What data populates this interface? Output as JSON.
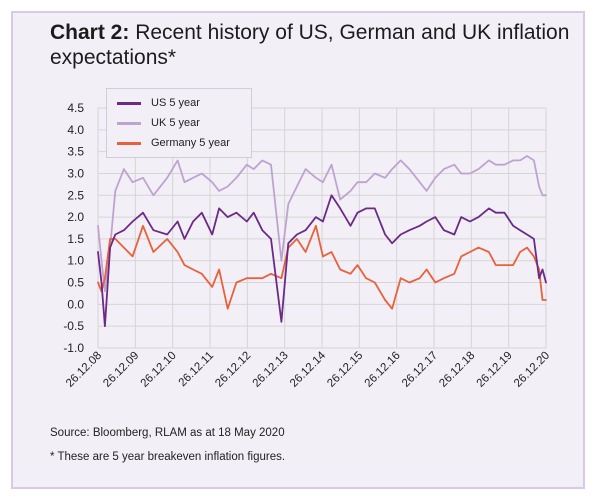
{
  "title": {
    "prefix": "Chart 2:",
    "text": "Recent history of US, German and UK inflation expectations*"
  },
  "source": "Source: Bloomberg, RLAM as at 18 May 2020",
  "footnote": "* These are 5 year breakeven inflation figures.",
  "colors": {
    "us": "#6b2a85",
    "uk": "#bea3cf",
    "germany": "#e8613c",
    "panel_bg": "#f3eff7",
    "panel_border": "#d9c8e6",
    "grid": "#d5d5d5"
  },
  "chart_data": {
    "type": "line",
    "title": "Recent history of US, German and UK inflation expectations*",
    "xlabel": "",
    "ylabel": "",
    "ylim": [
      -1.0,
      4.5
    ],
    "yticks": [
      "4.5",
      "4.0",
      "3.5",
      "3.0",
      "2.5",
      "2.0",
      "1.5",
      "1.0",
      "0.5",
      "0.0",
      "-0.5",
      "-1.0"
    ],
    "xticks": [
      "26.12.08",
      "26.12.09",
      "26.12.10",
      "26.12.11",
      "26.12.12",
      "26.12.13",
      "26.12.14",
      "26.12.15",
      "26.12.16",
      "26.12.17",
      "26.12.18",
      "26.12.19",
      "26.12.20"
    ],
    "xrange": [
      2008.0,
      2020.95
    ],
    "grid": true,
    "legend_position": "top-left",
    "series": [
      {
        "name": "US 5 year",
        "key": "us",
        "x": [
          2008.0,
          2008.1,
          2008.2,
          2008.35,
          2008.5,
          2008.75,
          2009.0,
          2009.3,
          2009.6,
          2010.0,
          2010.3,
          2010.5,
          2010.75,
          2011.0,
          2011.3,
          2011.5,
          2011.75,
          2012.0,
          2012.3,
          2012.5,
          2012.75,
          2013.0,
          2013.3,
          2013.5,
          2013.75,
          2014.0,
          2014.3,
          2014.5,
          2014.75,
          2015.0,
          2015.3,
          2015.5,
          2015.75,
          2016.0,
          2016.3,
          2016.5,
          2016.75,
          2017.0,
          2017.3,
          2017.5,
          2017.75,
          2018.0,
          2018.3,
          2018.5,
          2018.75,
          2019.0,
          2019.3,
          2019.5,
          2019.75,
          2020.0,
          2020.2,
          2020.4,
          2020.6,
          2020.75,
          2020.85,
          2020.95
        ],
        "values": [
          1.2,
          0.5,
          -0.5,
          1.3,
          1.6,
          1.7,
          1.9,
          2.1,
          1.7,
          1.6,
          1.9,
          1.5,
          1.9,
          2.1,
          1.6,
          2.2,
          2.0,
          2.1,
          1.9,
          2.1,
          1.7,
          1.5,
          -0.4,
          1.4,
          1.6,
          1.7,
          2.0,
          1.9,
          2.5,
          2.2,
          1.8,
          2.1,
          2.2,
          2.2,
          1.6,
          1.4,
          1.6,
          1.7,
          1.8,
          1.9,
          2.0,
          1.7,
          1.6,
          2.0,
          1.9,
          2.0,
          2.2,
          2.1,
          2.1,
          1.8,
          1.7,
          1.6,
          1.5,
          0.6,
          0.8,
          0.5
        ]
      },
      {
        "name": "UK 5 year",
        "key": "uk",
        "x": [
          2008.0,
          2008.1,
          2008.2,
          2008.35,
          2008.5,
          2008.75,
          2009.0,
          2009.3,
          2009.6,
          2010.0,
          2010.3,
          2010.5,
          2010.75,
          2011.0,
          2011.3,
          2011.5,
          2011.75,
          2012.0,
          2012.3,
          2012.5,
          2012.75,
          2013.0,
          2013.3,
          2013.5,
          2013.75,
          2014.0,
          2014.3,
          2014.5,
          2014.75,
          2015.0,
          2015.3,
          2015.5,
          2015.75,
          2016.0,
          2016.3,
          2016.5,
          2016.75,
          2017.0,
          2017.3,
          2017.5,
          2017.75,
          2018.0,
          2018.3,
          2018.5,
          2018.75,
          2019.0,
          2019.3,
          2019.5,
          2019.75,
          2020.0,
          2020.2,
          2020.4,
          2020.6,
          2020.75,
          2020.85,
          2020.95
        ],
        "values": [
          1.8,
          1.0,
          0.3,
          1.3,
          2.6,
          3.1,
          2.8,
          2.9,
          2.5,
          2.9,
          3.3,
          2.8,
          2.9,
          3.0,
          2.8,
          2.6,
          2.7,
          2.9,
          3.2,
          3.1,
          3.3,
          3.2,
          1.0,
          2.3,
          2.7,
          3.1,
          2.9,
          2.8,
          3.2,
          2.4,
          2.6,
          2.8,
          2.8,
          3.0,
          2.9,
          3.1,
          3.3,
          3.1,
          2.8,
          2.6,
          2.9,
          3.1,
          3.2,
          3.0,
          3.0,
          3.1,
          3.3,
          3.2,
          3.2,
          3.3,
          3.3,
          3.4,
          3.3,
          2.7,
          2.5,
          2.5
        ]
      },
      {
        "name": "Germany 5 year",
        "key": "germany",
        "x": [
          2008.0,
          2008.1,
          2008.2,
          2008.35,
          2008.5,
          2008.75,
          2009.0,
          2009.3,
          2009.6,
          2010.0,
          2010.3,
          2010.5,
          2010.75,
          2011.0,
          2011.3,
          2011.5,
          2011.75,
          2012.0,
          2012.3,
          2012.5,
          2012.75,
          2013.0,
          2013.3,
          2013.5,
          2013.75,
          2014.0,
          2014.3,
          2014.5,
          2014.75,
          2015.0,
          2015.3,
          2015.5,
          2015.75,
          2016.0,
          2016.3,
          2016.5,
          2016.75,
          2017.0,
          2017.3,
          2017.5,
          2017.75,
          2018.0,
          2018.3,
          2018.5,
          2018.75,
          2019.0,
          2019.3,
          2019.5,
          2019.75,
          2020.0,
          2020.2,
          2020.4,
          2020.6,
          2020.75,
          2020.85,
          2020.95
        ],
        "values": [
          0.5,
          0.3,
          0.6,
          1.5,
          1.5,
          1.3,
          1.1,
          1.8,
          1.2,
          1.5,
          1.2,
          0.9,
          0.8,
          0.7,
          0.4,
          0.8,
          -0.1,
          0.5,
          0.6,
          0.6,
          0.6,
          0.7,
          0.6,
          1.3,
          1.5,
          1.2,
          1.8,
          1.1,
          1.2,
          0.8,
          0.7,
          0.9,
          0.6,
          0.5,
          0.1,
          -0.1,
          0.6,
          0.5,
          0.6,
          0.8,
          0.5,
          0.6,
          0.7,
          1.1,
          1.2,
          1.3,
          1.2,
          0.9,
          0.9,
          0.9,
          1.2,
          1.3,
          1.1,
          0.8,
          0.1,
          0.1
        ]
      }
    ]
  }
}
